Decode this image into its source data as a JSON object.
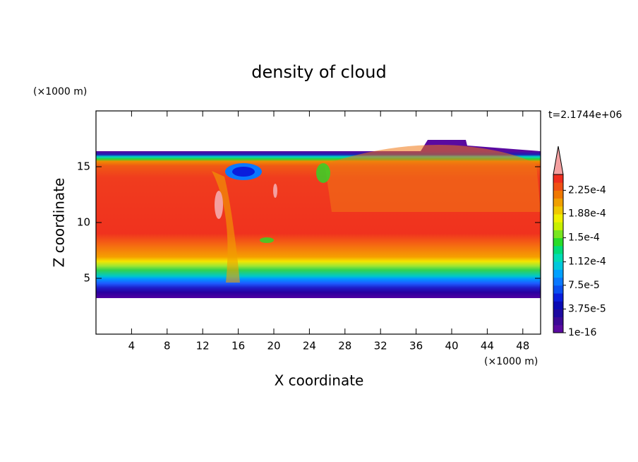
{
  "chart_data": {
    "type": "contour",
    "title": "density of cloud",
    "xlabel": "X coordinate",
    "ylabel": "Z coordinate",
    "x_unit": "(×1000 m)",
    "y_unit": "(×1000 m)",
    "time_label": "t=2.1744e+06",
    "xlim": [
      0,
      50
    ],
    "ylim": [
      0,
      20
    ],
    "xticks": [
      4,
      8,
      12,
      16,
      20,
      24,
      28,
      32,
      36,
      40,
      44,
      48
    ],
    "yticks": [
      5,
      10,
      15
    ],
    "colorbar": {
      "lim": [
        1e-16,
        0.00025
      ],
      "ticks": [
        {
          "value": 1e-16,
          "label": "1e-16"
        },
        {
          "value": 3.75e-05,
          "label": "3.75e-5"
        },
        {
          "value": 7.5e-05,
          "label": "7.5e-5"
        },
        {
          "value": 0.000112,
          "label": "1.12e-4"
        },
        {
          "value": 0.00015,
          "label": "1.5e-4"
        },
        {
          "value": 0.000188,
          "label": "1.88e-4"
        },
        {
          "value": 0.000225,
          "label": "2.25e-4"
        }
      ],
      "colors": [
        "#5a0aa0",
        "#3c0a96",
        "#1e0aa0",
        "#0a0ab4",
        "#0a1edc",
        "#0a50f0",
        "#0a78ff",
        "#00a0ff",
        "#00c8dc",
        "#00dcb4",
        "#00dc78",
        "#28dc28",
        "#78e61e",
        "#c8f000",
        "#f0f000",
        "#f0c800",
        "#f0a000",
        "#f07800",
        "#f05014",
        "#f02d1e"
      ],
      "extend_color": "#f4a0a0"
    }
  }
}
